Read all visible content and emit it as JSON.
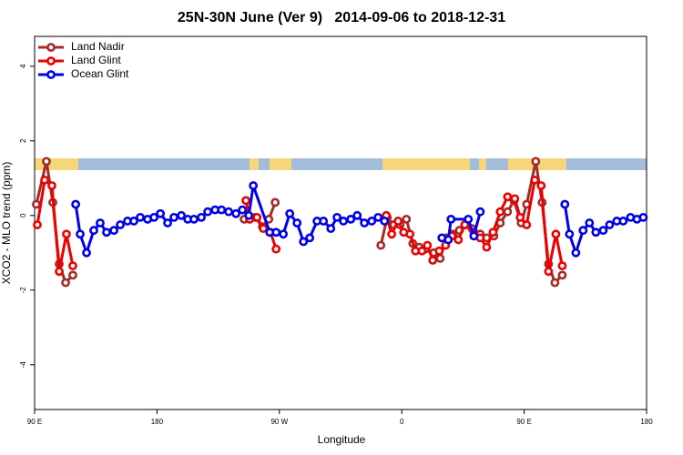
{
  "chart_data": {
    "type": "line",
    "title": "25N-30N June (Ver 9)   2014-09-06 to 2018-12-31",
    "xlabel": "Longitude",
    "ylabel": "XCO2 - MLO trend (ppm)",
    "xlim": [
      90,
      540
    ],
    "xticks": [
      {
        "value": 90,
        "label": "90 E"
      },
      {
        "value": 180,
        "label": "180"
      },
      {
        "value": 270,
        "label": "90 W"
      },
      {
        "value": 360,
        "label": "0"
      },
      {
        "value": 450,
        "label": "90 E"
      },
      {
        "value": 540,
        "label": "180"
      }
    ],
    "ylim": [
      -5.2,
      4.8
    ],
    "yticks": [
      4,
      2,
      0,
      -2,
      -4
    ],
    "legend": "top-left",
    "series": [
      {
        "name": "Land Nadir",
        "color": "#a52a2a",
        "x": [
          91.3,
          98.7,
          103.4,
          108.1,
          112.8,
          118.1,
          null,
          244.1,
          252.1,
          257.5,
          262.2,
          266.9,
          null,
          344.6,
          349.3,
          354.0,
          358.7,
          363.4,
          368.1,
          372.8,
          377.4,
          383.5,
          388.2,
          392.9,
          397.6,
          402.3,
          407.0,
          411.7,
          417.7,
          422.4,
          427.7,
          432.4,
          437.8,
          442.5,
          447.8,
          451.8,
          458.5,
          463.2,
          467.9,
          472.6,
          478.0
        ],
        "values": [
          0.3,
          1.45,
          0.35,
          -1.3,
          -1.8,
          -1.6,
          null,
          -0.1,
          -0.05,
          -0.3,
          -0.1,
          0.35,
          null,
          -0.8,
          -0.05,
          -0.25,
          -0.25,
          -0.1,
          -0.75,
          -0.85,
          -0.9,
          -1.0,
          -1.15,
          -0.6,
          -0.5,
          -0.4,
          -0.25,
          -0.35,
          -0.5,
          -0.6,
          -0.55,
          -0.2,
          0.1,
          0.4,
          -0.2,
          0.3,
          1.45,
          0.35,
          -1.3,
          -1.8,
          -1.6
        ]
      },
      {
        "name": "Land Glint",
        "color": "#ee0000",
        "x": [
          92.0,
          97.4,
          102.7,
          108.1,
          113.4,
          118.1,
          null,
          245.4,
          248.1,
          253.5,
          258.2,
          263.5,
          267.6,
          null,
          348.6,
          352.6,
          357.3,
          361.4,
          366.0,
          370.1,
          374.8,
          378.8,
          382.8,
          387.5,
          392.2,
          396.9,
          401.6,
          406.3,
          413.0,
          417.7,
          422.4,
          427.1,
          432.4,
          437.8,
          443.1,
          447.1,
          451.8,
          457.8,
          462.5,
          467.9,
          473.3,
          478.0
        ],
        "values": [
          -0.25,
          0.95,
          0.8,
          -1.5,
          -0.5,
          -1.35,
          null,
          0.4,
          -0.1,
          -0.05,
          -0.35,
          -0.45,
          -0.9,
          null,
          0,
          -0.5,
          -0.15,
          -0.45,
          -0.5,
          -0.95,
          -0.95,
          -0.8,
          -1.2,
          -0.95,
          -0.8,
          -0.55,
          -0.65,
          -0.25,
          -0.45,
          -0.6,
          -0.85,
          -0.45,
          0.1,
          0.5,
          0.45,
          -0.05,
          -0.25,
          0.95,
          0.8,
          -1.5,
          -0.5,
          -1.35
        ]
      },
      {
        "name": "Ocean Glint",
        "color": "#0000ee",
        "x": [
          120.2,
          123.5,
          128.2,
          133.5,
          138.2,
          142.9,
          148.3,
          153.0,
          158.3,
          163.0,
          167.7,
          173.1,
          177.8,
          182.5,
          187.8,
          192.5,
          197.9,
          202.6,
          207.2,
          212.6,
          217.3,
          222.7,
          227.4,
          232.7,
          238.1,
          242.8,
          247.5,
          250.8,
          262.9,
          267.6,
          272.9,
          277.6,
          283.0,
          287.7,
          292.3,
          297.7,
          302.4,
          307.8,
          312.4,
          317.1,
          322.5,
          327.2,
          332.5,
          337.9,
          342.6,
          347.3,
          null,
          389.5,
          394.2,
          396.2,
          408.9,
          413.0,
          417.7,
          null,
          479.9,
          483.3,
          488.0,
          493.3,
          498.0,
          502.7,
          508.1,
          512.8,
          518.1,
          522.8,
          528.2,
          532.9,
          537.6
        ],
        "values": [
          0.3,
          -0.5,
          -1.0,
          -0.4,
          -0.2,
          -0.45,
          -0.4,
          -0.25,
          -0.15,
          -0.15,
          -0.05,
          -0.1,
          -0.05,
          0.05,
          -0.2,
          -0.05,
          0.0,
          -0.1,
          -0.1,
          -0.05,
          0.1,
          0.15,
          0.15,
          0.1,
          0.05,
          0.15,
          0,
          0.8,
          -0.45,
          -0.45,
          -0.5,
          0.05,
          -0.2,
          -0.7,
          -0.6,
          -0.15,
          -0.15,
          -0.35,
          -0.05,
          -0.15,
          -0.1,
          0,
          -0.2,
          -0.15,
          -0.05,
          -0.15,
          null,
          -0.6,
          -0.65,
          -0.1,
          -0.1,
          -0.55,
          0.1,
          null,
          0.3,
          -0.5,
          -1.0,
          -0.4,
          -0.2,
          -0.45,
          -0.4,
          -0.25,
          -0.15,
          -0.15,
          -0.05,
          -0.1,
          -0.05
        ]
      }
    ]
  }
}
